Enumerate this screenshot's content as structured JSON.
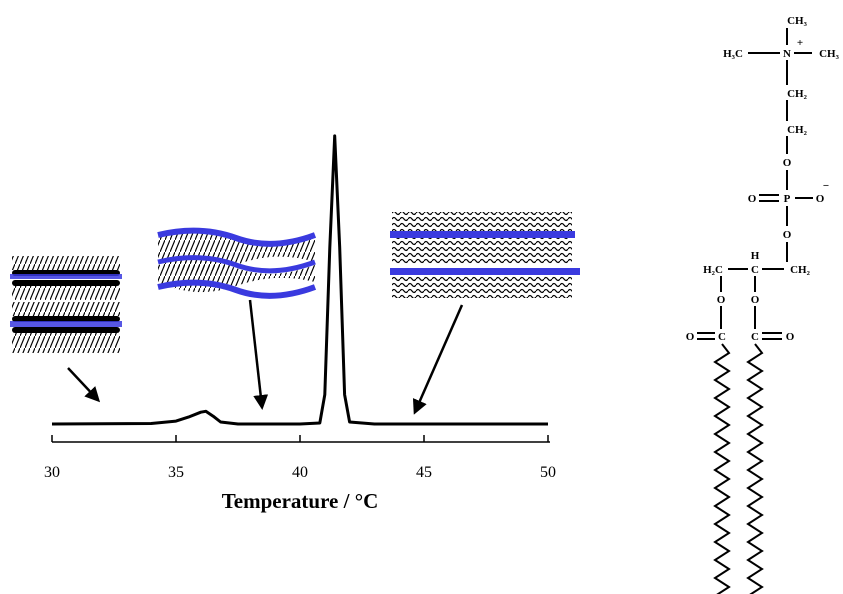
{
  "chart_data": {
    "type": "line",
    "x_label": "Temperature / °C",
    "x": [
      30,
      34,
      35,
      35.5,
      36,
      36.2,
      36.5,
      36.8,
      37.5,
      40,
      40.8,
      41.0,
      41.2,
      41.4,
      41.6,
      41.8,
      42.0,
      43,
      50
    ],
    "values": [
      0,
      0.5,
      3,
      7,
      12,
      13,
      8,
      2,
      0,
      0,
      1,
      30,
      180,
      294,
      180,
      30,
      2,
      0,
      0
    ],
    "color": "#000000",
    "xlim": [
      30,
      50
    ],
    "xticks": [
      30,
      35,
      40,
      45,
      50
    ],
    "ylim": [
      0,
      300
    ]
  },
  "structure": {
    "labels": [
      "CH₃",
      "H₃C",
      "N",
      "+",
      "CH₃",
      "CH₂",
      "CH₂",
      "O",
      "O",
      "P",
      "O",
      "−",
      "O",
      "H₂C",
      "H",
      "C",
      "CH₂",
      "O",
      "O",
      "O",
      "C",
      "C",
      "O"
    ]
  }
}
